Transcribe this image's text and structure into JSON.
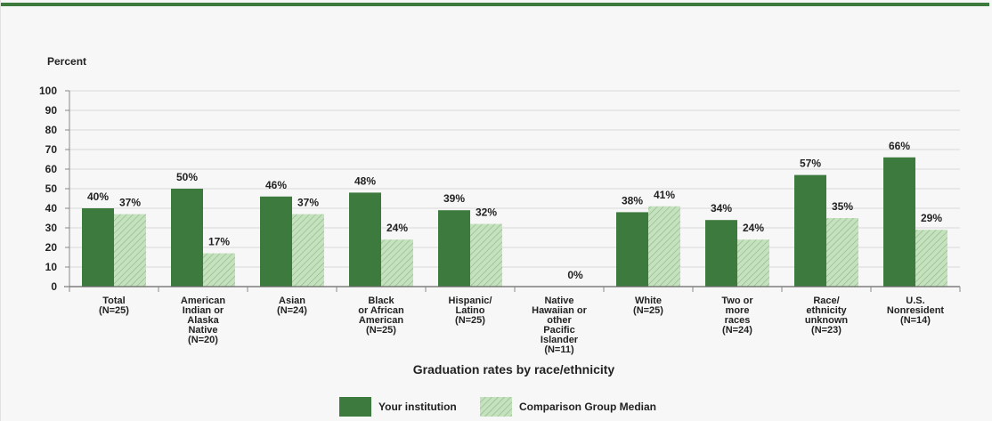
{
  "chart_data": {
    "type": "bar",
    "ylabel": "Percent",
    "xlabel": "Graduation rates by race/ethnicity",
    "ylim": [
      0,
      100
    ],
    "yticks": [
      0,
      10,
      20,
      30,
      40,
      50,
      60,
      70,
      80,
      90,
      100
    ],
    "grid": true,
    "legend_position": "bottom",
    "categories": [
      [
        "Total",
        "(N=25)"
      ],
      [
        "American",
        "Indian or",
        "Alaska",
        "Native",
        "(N=20)"
      ],
      [
        "Asian",
        "(N=24)"
      ],
      [
        "Black",
        "or African",
        "American",
        "(N=25)"
      ],
      [
        "Hispanic/",
        "Latino",
        "(N=25)"
      ],
      [
        "Native",
        "Hawaiian or",
        "other",
        "Pacific",
        "Islander",
        "(N=11)"
      ],
      [
        "White",
        "(N=25)"
      ],
      [
        "Two or",
        "more",
        "races",
        "(N=24)"
      ],
      [
        "Race/",
        "ethnicity",
        "unknown",
        "(N=23)"
      ],
      [
        "U.S.",
        "Nonresident",
        "(N=14)"
      ]
    ],
    "series": [
      {
        "name": "Your institution",
        "color": "#3d7a3d",
        "pattern": "solid",
        "values": [
          40,
          50,
          46,
          48,
          39,
          null,
          38,
          34,
          57,
          66
        ],
        "labels": [
          "40%",
          "50%",
          "46%",
          "48%",
          "39%",
          "",
          "38%",
          "34%",
          "57%",
          "66%"
        ]
      },
      {
        "name": "Comparison Group Median",
        "color": "#b9dcb0",
        "pattern": "hatched",
        "values": [
          37,
          17,
          37,
          24,
          32,
          0,
          41,
          24,
          35,
          29
        ],
        "labels": [
          "37%",
          "17%",
          "37%",
          "24%",
          "32%",
          "0%",
          "41%",
          "24%",
          "35%",
          "29%"
        ]
      }
    ]
  }
}
